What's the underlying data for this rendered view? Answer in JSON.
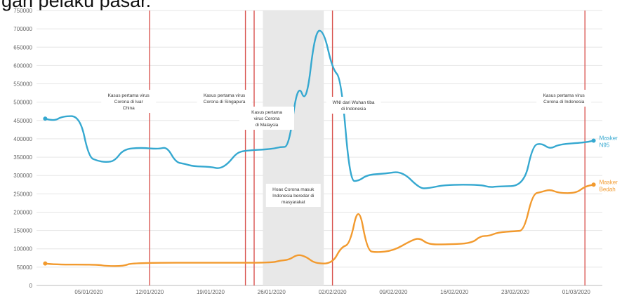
{
  "caption": "gan pelaku pasar.",
  "chart_data": {
    "type": "line",
    "title": "",
    "xlabel": "",
    "ylabel": "",
    "ylim": [
      0,
      750000
    ],
    "yticks": [
      0,
      50000,
      100000,
      150000,
      200000,
      250000,
      300000,
      350000,
      400000,
      450000,
      500000,
      550000,
      600000,
      650000,
      700000,
      750000
    ],
    "xlim": [
      "2019-12-30",
      "2020-03-04"
    ],
    "xticks": [
      "05/01/2020",
      "12/01/2020",
      "19/01/2020",
      "26/01/2020",
      "02/02/2020",
      "09/02/2020",
      "16/02/2020",
      "23/02/2020",
      "01/03/2020"
    ],
    "grid": true,
    "shaded_periods": [
      {
        "start": "2020-01-25",
        "end": "2020-02-01",
        "label": "Hoax Corona masuk Indonesia beredar di masyarakat"
      }
    ],
    "events": [
      {
        "date": "2020-01-12",
        "label": "Kasus pertama virus Corona di luar China"
      },
      {
        "date": "2020-01-23",
        "label": "Kasus pertama virus Corona di Singapura"
      },
      {
        "date": "2020-01-24",
        "label": "Kasus pertama virus Corona di Malaysia"
      },
      {
        "date": "2020-02-02",
        "label": "WNI dari Wuhan tiba di Indonesia"
      },
      {
        "date": "2020-03-02",
        "label": "Kasus pertama virus Corona di Indonesia"
      }
    ],
    "series": [
      {
        "name": "Masker N95",
        "color": "#35a8d0",
        "points": [
          [
            "2019-12-31",
            455000
          ],
          [
            "2020-01-01",
            448000
          ],
          [
            "2020-01-02",
            462000
          ],
          [
            "2020-01-04",
            462000
          ],
          [
            "2020-01-05",
            350000
          ],
          [
            "2020-01-06",
            340000
          ],
          [
            "2020-01-07",
            336000
          ],
          [
            "2020-01-08",
            340000
          ],
          [
            "2020-01-09",
            372000
          ],
          [
            "2020-01-11",
            376000
          ],
          [
            "2020-01-13",
            372000
          ],
          [
            "2020-01-14",
            378000
          ],
          [
            "2020-01-15",
            336000
          ],
          [
            "2020-01-16",
            332000
          ],
          [
            "2020-01-17",
            325000
          ],
          [
            "2020-01-19",
            324000
          ],
          [
            "2020-01-20",
            318000
          ],
          [
            "2020-01-21",
            332000
          ],
          [
            "2020-01-22",
            362000
          ],
          [
            "2020-01-23",
            368000
          ],
          [
            "2020-01-26",
            372000
          ],
          [
            "2020-01-27",
            378000
          ],
          [
            "2020-01-28",
            378000
          ],
          [
            "2020-01-29",
            555000
          ],
          [
            "2020-01-30",
            492000
          ],
          [
            "2020-01-31",
            695000
          ],
          [
            "2020-02-01",
            695000
          ],
          [
            "2020-02-02",
            590000
          ],
          [
            "2020-02-03",
            565000
          ],
          [
            "2020-02-04",
            285000
          ],
          [
            "2020-02-05",
            285000
          ],
          [
            "2020-02-06",
            302000
          ],
          [
            "2020-02-08",
            305000
          ],
          [
            "2020-02-10",
            312000
          ],
          [
            "2020-02-12",
            265000
          ],
          [
            "2020-02-13",
            265000
          ],
          [
            "2020-02-15",
            275000
          ],
          [
            "2020-02-19",
            275000
          ],
          [
            "2020-02-20",
            268000
          ],
          [
            "2020-02-21",
            270000
          ],
          [
            "2020-02-24",
            272000
          ],
          [
            "2020-02-25",
            382000
          ],
          [
            "2020-02-26",
            388000
          ],
          [
            "2020-02-27",
            372000
          ],
          [
            "2020-02-28",
            385000
          ],
          [
            "2020-03-02",
            390000
          ],
          [
            "2020-03-03",
            395000
          ]
        ]
      },
      {
        "name": "Masker Bedah",
        "color": "#f29a2e",
        "points": [
          [
            "2019-12-31",
            60000
          ],
          [
            "2020-01-01",
            57000
          ],
          [
            "2020-01-06",
            57000
          ],
          [
            "2020-01-07",
            53000
          ],
          [
            "2020-01-09",
            53000
          ],
          [
            "2020-01-10",
            62000
          ],
          [
            "2020-01-20",
            62000
          ],
          [
            "2020-01-26",
            62000
          ],
          [
            "2020-01-27",
            68000
          ],
          [
            "2020-01-28",
            70000
          ],
          [
            "2020-01-29",
            85000
          ],
          [
            "2020-01-30",
            78000
          ],
          [
            "2020-01-31",
            60000
          ],
          [
            "2020-02-02",
            60000
          ],
          [
            "2020-02-03",
            105000
          ],
          [
            "2020-02-04",
            112000
          ],
          [
            "2020-02-05",
            225000
          ],
          [
            "2020-02-06",
            95000
          ],
          [
            "2020-02-07",
            90000
          ],
          [
            "2020-02-09",
            95000
          ],
          [
            "2020-02-11",
            122000
          ],
          [
            "2020-02-12",
            130000
          ],
          [
            "2020-02-13",
            112000
          ],
          [
            "2020-02-15",
            112000
          ],
          [
            "2020-02-18",
            115000
          ],
          [
            "2020-02-19",
            135000
          ],
          [
            "2020-02-20",
            135000
          ],
          [
            "2020-02-21",
            145000
          ],
          [
            "2020-02-23",
            148000
          ],
          [
            "2020-02-24",
            150000
          ],
          [
            "2020-02-25",
            250000
          ],
          [
            "2020-02-26",
            255000
          ],
          [
            "2020-02-27",
            262000
          ],
          [
            "2020-02-28",
            252000
          ],
          [
            "2020-03-01",
            252000
          ],
          [
            "2020-03-02",
            270000
          ],
          [
            "2020-03-03",
            275000
          ]
        ]
      }
    ]
  }
}
